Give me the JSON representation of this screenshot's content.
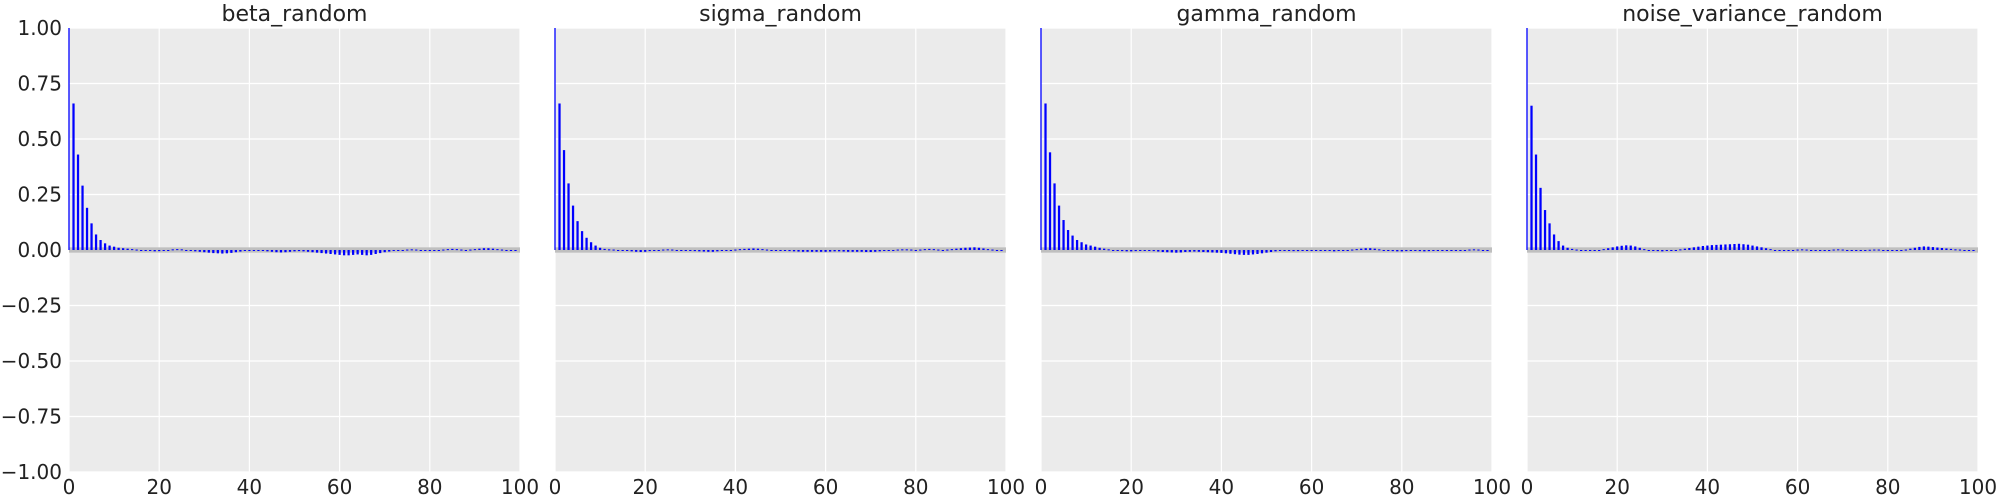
{
  "colors": {
    "background": "#ebebeb",
    "grid": "#ffffff",
    "bar": "#0000ff",
    "band": "#bfbfbf",
    "text": "#222222"
  },
  "chart_data": [
    {
      "type": "bar",
      "title": "beta_random",
      "xlim": [
        0,
        100
      ],
      "ylim": [
        -1.0,
        1.0
      ],
      "xticks": [
        "0",
        "20",
        "40",
        "60",
        "80",
        "100"
      ],
      "yticks": [
        "1.00",
        "0.75",
        "0.50",
        "0.25",
        "0.00",
        "−0.25",
        "−0.50",
        "−0.75",
        "−1.00"
      ],
      "grid": true,
      "confidence_band": 0.012,
      "lags": [
        0,
        1,
        2,
        3,
        4,
        5,
        6,
        7,
        8,
        9,
        10,
        11,
        12,
        13,
        14,
        15,
        16,
        17,
        18,
        19,
        20,
        21,
        22,
        23,
        24,
        25,
        26,
        27,
        28,
        29,
        30,
        31,
        32,
        33,
        34,
        35,
        36,
        37,
        38,
        39,
        40,
        41,
        42,
        43,
        44,
        45,
        46,
        47,
        48,
        49,
        50,
        51,
        52,
        53,
        54,
        55,
        56,
        57,
        58,
        59,
        60,
        61,
        62,
        63,
        64,
        65,
        66,
        67,
        68,
        69,
        70,
        71,
        72,
        73,
        74,
        75,
        76,
        77,
        78,
        79,
        80,
        81,
        82,
        83,
        84,
        85,
        86,
        87,
        88,
        89,
        90,
        91,
        92,
        93,
        94,
        95,
        96,
        97,
        98,
        99
      ],
      "values": [
        1.0,
        0.66,
        0.43,
        0.29,
        0.19,
        0.12,
        0.07,
        0.045,
        0.03,
        0.02,
        0.015,
        0.01,
        0.008,
        0.006,
        0.004,
        0.002,
        0.0,
        -0.002,
        -0.004,
        -0.006,
        -0.005,
        -0.003,
        0.0,
        0.003,
        0.004,
        0.003,
        0.0,
        -0.003,
        -0.006,
        -0.008,
        -0.01,
        -0.012,
        -0.014,
        -0.015,
        -0.016,
        -0.015,
        -0.013,
        -0.01,
        -0.007,
        -0.004,
        -0.002,
        0.0,
        -0.002,
        -0.004,
        -0.006,
        -0.008,
        -0.01,
        -0.011,
        -0.01,
        -0.008,
        -0.006,
        -0.005,
        -0.006,
        -0.008,
        -0.01,
        -0.012,
        -0.014,
        -0.016,
        -0.018,
        -0.02,
        -0.022,
        -0.024,
        -0.024,
        -0.022,
        -0.02,
        -0.022,
        -0.024,
        -0.022,
        -0.018,
        -0.014,
        -0.01,
        -0.007,
        -0.004,
        -0.002,
        0.0,
        0.002,
        0.003,
        0.002,
        0.0,
        -0.002,
        -0.003,
        -0.002,
        0.0,
        0.002,
        0.004,
        0.005,
        0.004,
        0.002,
        0.0,
        0.002,
        0.004,
        0.006,
        0.008,
        0.008,
        0.006,
        0.004,
        0.002,
        0.0,
        -0.002,
        -0.003
      ]
    },
    {
      "type": "bar",
      "title": "sigma_random",
      "xlim": [
        0,
        100
      ],
      "ylim": [
        -1.0,
        1.0
      ],
      "xticks": [
        "0",
        "20",
        "40",
        "60",
        "80",
        "100"
      ],
      "grid": true,
      "confidence_band": 0.012,
      "lags": [
        0,
        1,
        2,
        3,
        4,
        5,
        6,
        7,
        8,
        9,
        10,
        11,
        12,
        13,
        14,
        15,
        16,
        17,
        18,
        19,
        20,
        21,
        22,
        23,
        24,
        25,
        26,
        27,
        28,
        29,
        30,
        31,
        32,
        33,
        34,
        35,
        36,
        37,
        38,
        39,
        40,
        41,
        42,
        43,
        44,
        45,
        46,
        47,
        48,
        49,
        50,
        51,
        52,
        53,
        54,
        55,
        56,
        57,
        58,
        59,
        60,
        61,
        62,
        63,
        64,
        65,
        66,
        67,
        68,
        69,
        70,
        71,
        72,
        73,
        74,
        75,
        76,
        77,
        78,
        79,
        80,
        81,
        82,
        83,
        84,
        85,
        86,
        87,
        88,
        89,
        90,
        91,
        92,
        93,
        94,
        95,
        96,
        97,
        98,
        99
      ],
      "values": [
        1.0,
        0.66,
        0.45,
        0.3,
        0.2,
        0.13,
        0.085,
        0.055,
        0.035,
        0.02,
        0.01,
        0.005,
        0.003,
        0.002,
        0.0,
        -0.002,
        -0.004,
        -0.006,
        -0.008,
        -0.009,
        -0.008,
        -0.005,
        -0.002,
        0.0,
        0.002,
        0.003,
        0.002,
        0.0,
        -0.002,
        -0.003,
        -0.004,
        -0.005,
        -0.006,
        -0.007,
        -0.008,
        -0.008,
        -0.006,
        -0.004,
        -0.002,
        0.0,
        0.002,
        0.004,
        0.005,
        0.006,
        0.007,
        0.006,
        0.004,
        0.002,
        0.0,
        -0.002,
        -0.003,
        -0.004,
        -0.005,
        -0.006,
        -0.007,
        -0.008,
        -0.008,
        -0.008,
        -0.008,
        -0.008,
        -0.008,
        -0.007,
        -0.006,
        -0.006,
        -0.007,
        -0.008,
        -0.008,
        -0.008,
        -0.008,
        -0.009,
        -0.009,
        -0.008,
        -0.006,
        -0.004,
        -0.002,
        0.0,
        0.002,
        0.003,
        0.003,
        0.002,
        0.0,
        0.002,
        0.004,
        0.005,
        0.004,
        0.002,
        0.0,
        0.002,
        0.004,
        0.006,
        0.008,
        0.01,
        0.011,
        0.012,
        0.01,
        0.007,
        0.004,
        0.002,
        0.0,
        -0.001
      ]
    },
    {
      "type": "bar",
      "title": "gamma_random",
      "xlim": [
        0,
        100
      ],
      "ylim": [
        -1.0,
        1.0
      ],
      "xticks": [
        "0",
        "20",
        "40",
        "60",
        "80",
        "100"
      ],
      "grid": true,
      "confidence_band": 0.012,
      "lags": [
        0,
        1,
        2,
        3,
        4,
        5,
        6,
        7,
        8,
        9,
        10,
        11,
        12,
        13,
        14,
        15,
        16,
        17,
        18,
        19,
        20,
        21,
        22,
        23,
        24,
        25,
        26,
        27,
        28,
        29,
        30,
        31,
        32,
        33,
        34,
        35,
        36,
        37,
        38,
        39,
        40,
        41,
        42,
        43,
        44,
        45,
        46,
        47,
        48,
        49,
        50,
        51,
        52,
        53,
        54,
        55,
        56,
        57,
        58,
        59,
        60,
        61,
        62,
        63,
        64,
        65,
        66,
        67,
        68,
        69,
        70,
        71,
        72,
        73,
        74,
        75,
        76,
        77,
        78,
        79,
        80,
        81,
        82,
        83,
        84,
        85,
        86,
        87,
        88,
        89,
        90,
        91,
        92,
        93,
        94,
        95,
        96,
        97,
        98,
        99
      ],
      "values": [
        1.0,
        0.66,
        0.44,
        0.3,
        0.2,
        0.135,
        0.09,
        0.065,
        0.045,
        0.035,
        0.025,
        0.02,
        0.015,
        0.01,
        0.006,
        0.003,
        0.0,
        -0.003,
        -0.005,
        -0.006,
        -0.006,
        -0.005,
        -0.004,
        -0.003,
        -0.004,
        -0.005,
        -0.007,
        -0.009,
        -0.01,
        -0.011,
        -0.012,
        -0.011,
        -0.009,
        -0.008,
        -0.007,
        -0.008,
        -0.009,
        -0.01,
        -0.011,
        -0.012,
        -0.013,
        -0.015,
        -0.017,
        -0.019,
        -0.021,
        -0.022,
        -0.022,
        -0.02,
        -0.018,
        -0.015,
        -0.012,
        -0.009,
        -0.006,
        -0.004,
        -0.003,
        -0.004,
        -0.005,
        -0.005,
        -0.004,
        -0.003,
        -0.002,
        -0.001,
        0.0,
        -0.002,
        -0.004,
        -0.006,
        -0.004,
        -0.002,
        0.0,
        0.002,
        0.004,
        0.006,
        0.008,
        0.008,
        0.006,
        0.003,
        0.0,
        -0.003,
        -0.005,
        -0.006,
        -0.006,
        -0.005,
        -0.004,
        -0.004,
        -0.005,
        -0.006,
        -0.005,
        -0.003,
        -0.001,
        0.0,
        -0.001,
        -0.002,
        -0.003,
        -0.002,
        0.0,
        0.002,
        0.003,
        0.002,
        0.0,
        0.0
      ]
    },
    {
      "type": "bar",
      "title": "noise_variance_random",
      "xlim": [
        0,
        100
      ],
      "ylim": [
        -1.0,
        1.0
      ],
      "xticks": [
        "0",
        "20",
        "40",
        "60",
        "80",
        "100"
      ],
      "grid": true,
      "confidence_band": 0.012,
      "lags": [
        0,
        1,
        2,
        3,
        4,
        5,
        6,
        7,
        8,
        9,
        10,
        11,
        12,
        13,
        14,
        15,
        16,
        17,
        18,
        19,
        20,
        21,
        22,
        23,
        24,
        25,
        26,
        27,
        28,
        29,
        30,
        31,
        32,
        33,
        34,
        35,
        36,
        37,
        38,
        39,
        40,
        41,
        42,
        43,
        44,
        45,
        46,
        47,
        48,
        49,
        50,
        51,
        52,
        53,
        54,
        55,
        56,
        57,
        58,
        59,
        60,
        61,
        62,
        63,
        64,
        65,
        66,
        67,
        68,
        69,
        70,
        71,
        72,
        73,
        74,
        75,
        76,
        77,
        78,
        79,
        80,
        81,
        82,
        83,
        84,
        85,
        86,
        87,
        88,
        89,
        90,
        91,
        92,
        93,
        94,
        95,
        96,
        97,
        98,
        99
      ],
      "values": [
        1.0,
        0.65,
        0.43,
        0.28,
        0.18,
        0.12,
        0.07,
        0.04,
        0.02,
        0.01,
        0.005,
        0.002,
        0.0,
        -0.002,
        -0.003,
        -0.002,
        0.0,
        0.004,
        0.008,
        0.012,
        0.016,
        0.019,
        0.021,
        0.02,
        0.016,
        0.01,
        0.004,
        0.0,
        -0.003,
        -0.005,
        -0.006,
        -0.004,
        -0.002,
        0.0,
        0.003,
        0.006,
        0.009,
        0.012,
        0.015,
        0.018,
        0.02,
        0.022,
        0.023,
        0.024,
        0.025,
        0.026,
        0.027,
        0.028,
        0.026,
        0.024,
        0.02,
        0.016,
        0.012,
        0.008,
        0.004,
        0.0,
        -0.002,
        -0.003,
        -0.002,
        0.0,
        0.002,
        0.003,
        0.002,
        0.0,
        -0.002,
        -0.003,
        -0.002,
        0.0,
        0.002,
        0.003,
        0.002,
        0.0,
        -0.002,
        -0.003,
        -0.002,
        0.0,
        0.001,
        0.002,
        0.002,
        0.0,
        -0.002,
        -0.004,
        -0.003,
        -0.001,
        0.002,
        0.006,
        0.01,
        0.014,
        0.016,
        0.015,
        0.013,
        0.011,
        0.009,
        0.007,
        0.005,
        0.003,
        0.002,
        0.0,
        -0.002,
        -0.003
      ]
    }
  ]
}
